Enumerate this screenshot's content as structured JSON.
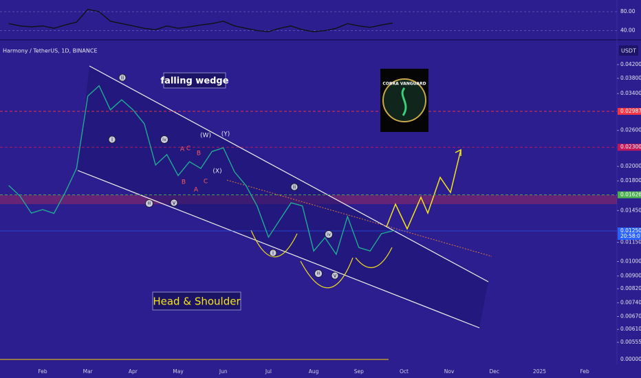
{
  "header": {
    "symbol": "Harmony / TetherUS, 1D, BINANCE",
    "currency": "USDT"
  },
  "annotations": {
    "pattern": "falling wedge",
    "pattern2": "Head & Shoulder",
    "logo": "COBRA VANGUARD",
    "waves": [
      "i",
      "ii",
      "iii",
      "iv",
      "v",
      "(W)",
      "(X)",
      "(Y)",
      "A",
      "C",
      "B",
      "B",
      "A",
      "C",
      "i",
      "ii",
      "iii",
      "iv",
      "v"
    ]
  },
  "chart_data": [
    {
      "type": "line",
      "color": "#111111",
      "values": [
        55,
        50,
        48,
        50,
        45,
        52,
        58,
        85,
        80,
        60,
        55,
        50,
        45,
        42,
        50,
        45,
        48,
        52,
        55,
        60,
        50,
        45,
        40,
        38,
        45,
        50,
        42,
        38,
        40,
        45,
        55,
        50,
        47,
        52,
        56
      ],
      "ylim": [
        25,
        93
      ],
      "yticks": [
        {
          "value": 80,
          "label": "80.00"
        },
        {
          "value": 40,
          "label": "40.00"
        }
      ],
      "grid": true
    },
    {
      "type": "line",
      "color": "#22ab94",
      "log_scale": true,
      "categories": [
        null,
        null,
        null,
        "Feb",
        null,
        null,
        null,
        "Mar",
        null,
        null,
        null,
        "Apr",
        null,
        null,
        null,
        "May",
        null,
        null,
        null,
        "Jun",
        null,
        null,
        null,
        "Jul",
        null,
        null,
        null,
        "Aug",
        null,
        null,
        null,
        "Sep",
        null,
        null,
        null,
        "Oct",
        null,
        null,
        null,
        "Nov",
        null,
        null,
        null,
        "Dec",
        null,
        null,
        null,
        "2025",
        null,
        null,
        null,
        "Feb",
        null
      ],
      "values": [
        0.0174,
        0.0161,
        0.01423,
        0.0146,
        0.0142,
        0.01654,
        0.0197,
        0.0334,
        0.036,
        0.0302,
        0.0325,
        0.0302,
        0.0273,
        0.0202,
        0.0218,
        0.0187,
        0.0207,
        0.0197,
        0.0223,
        0.0229,
        0.0192,
        0.0174,
        0.01496,
        0.01194,
        0.01354,
        0.01534,
        0.015,
        0.0108,
        0.0119,
        0.01054,
        0.01388,
        0.01107,
        0.0108,
        0.01225,
        0.0125,
        null,
        null,
        null,
        null,
        null,
        null,
        null,
        null,
        null,
        null,
        null,
        null,
        null,
        null,
        null,
        null,
        null,
        null
      ],
      "ylim": [
        0.00473,
        0.0493
      ],
      "yticks": [
        {
          "value": 0.042,
          "label": "0.04200"
        },
        {
          "value": 0.038,
          "label": "0.03800"
        },
        {
          "value": 0.034,
          "label": "0.03400"
        },
        {
          "value": 0.026,
          "label": "0.02600"
        },
        {
          "value": 0.02,
          "label": "0.02000"
        },
        {
          "value": 0.018,
          "label": "0.01800"
        },
        {
          "value": 0.0145,
          "label": "0.01450"
        },
        {
          "value": 0.0115,
          "label": "0.01150"
        },
        {
          "value": 0.01,
          "label": "0.01000"
        },
        {
          "value": 0.009,
          "label": "0.00900"
        },
        {
          "value": 0.0082,
          "label": "0.00820"
        },
        {
          "value": 0.0074,
          "label": "0.00740"
        },
        {
          "value": 0.0067,
          "label": "0.00670"
        },
        {
          "value": 0.0061,
          "label": "0.00610"
        },
        {
          "value": 0.00555,
          "label": "0.00555"
        }
      ],
      "price_lines": [
        {
          "value": 0.02987,
          "label": "0.02987",
          "color": "#f23645"
        },
        {
          "value": 0.023,
          "label": "0.02300",
          "color": "#c2185b"
        },
        {
          "value": 0.01626,
          "label": "0.01626",
          "color": "#4caf50"
        },
        {
          "value": 0.0125,
          "label": "0.01250",
          "color": "#2962ff",
          "sublabel": "20:58:07"
        }
      ],
      "volume_yticks": [
        {
          "value": 0,
          "label": "0.00000"
        }
      ]
    }
  ]
}
